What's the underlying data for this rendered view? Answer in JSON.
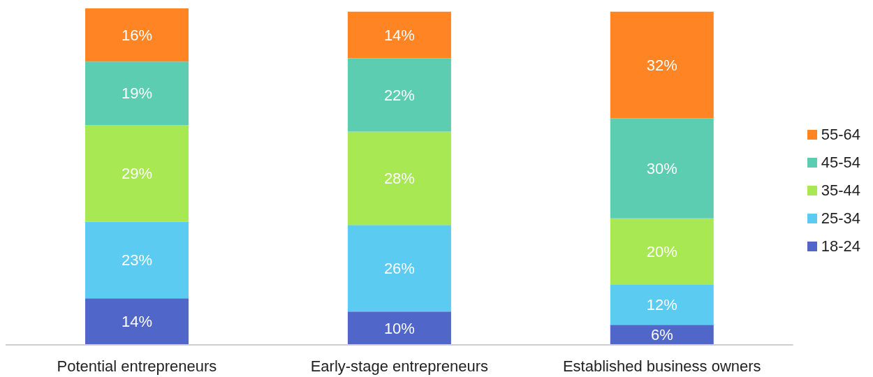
{
  "chart_data": {
    "type": "bar",
    "stacked": true,
    "categories": [
      "Potential entrepreneurs",
      "Early-stage entrepreneurs",
      "Established business owners"
    ],
    "series": [
      {
        "name": "18-24",
        "color": "#5066c8",
        "values": [
          14,
          10,
          6
        ],
        "value_labels": [
          "14%",
          "10%",
          "6%"
        ]
      },
      {
        "name": "25-34",
        "color": "#5bcbf2",
        "values": [
          23,
          26,
          12
        ],
        "value_labels": [
          "23%",
          "26%",
          "12%"
        ]
      },
      {
        "name": "35-44",
        "color": "#a8e852",
        "values": [
          29,
          28,
          20
        ],
        "value_labels": [
          "29%",
          "28%",
          "20%"
        ]
      },
      {
        "name": "45-54",
        "color": "#5ccdb1",
        "values": [
          19,
          22,
          30
        ],
        "value_labels": [
          "19%",
          "22%",
          "30%"
        ]
      },
      {
        "name": "55-64",
        "color": "#ff8424",
        "values": [
          16,
          14,
          32
        ],
        "value_labels": [
          "16%",
          "14%",
          "32%"
        ]
      }
    ],
    "legend": "right",
    "grid": false
  }
}
